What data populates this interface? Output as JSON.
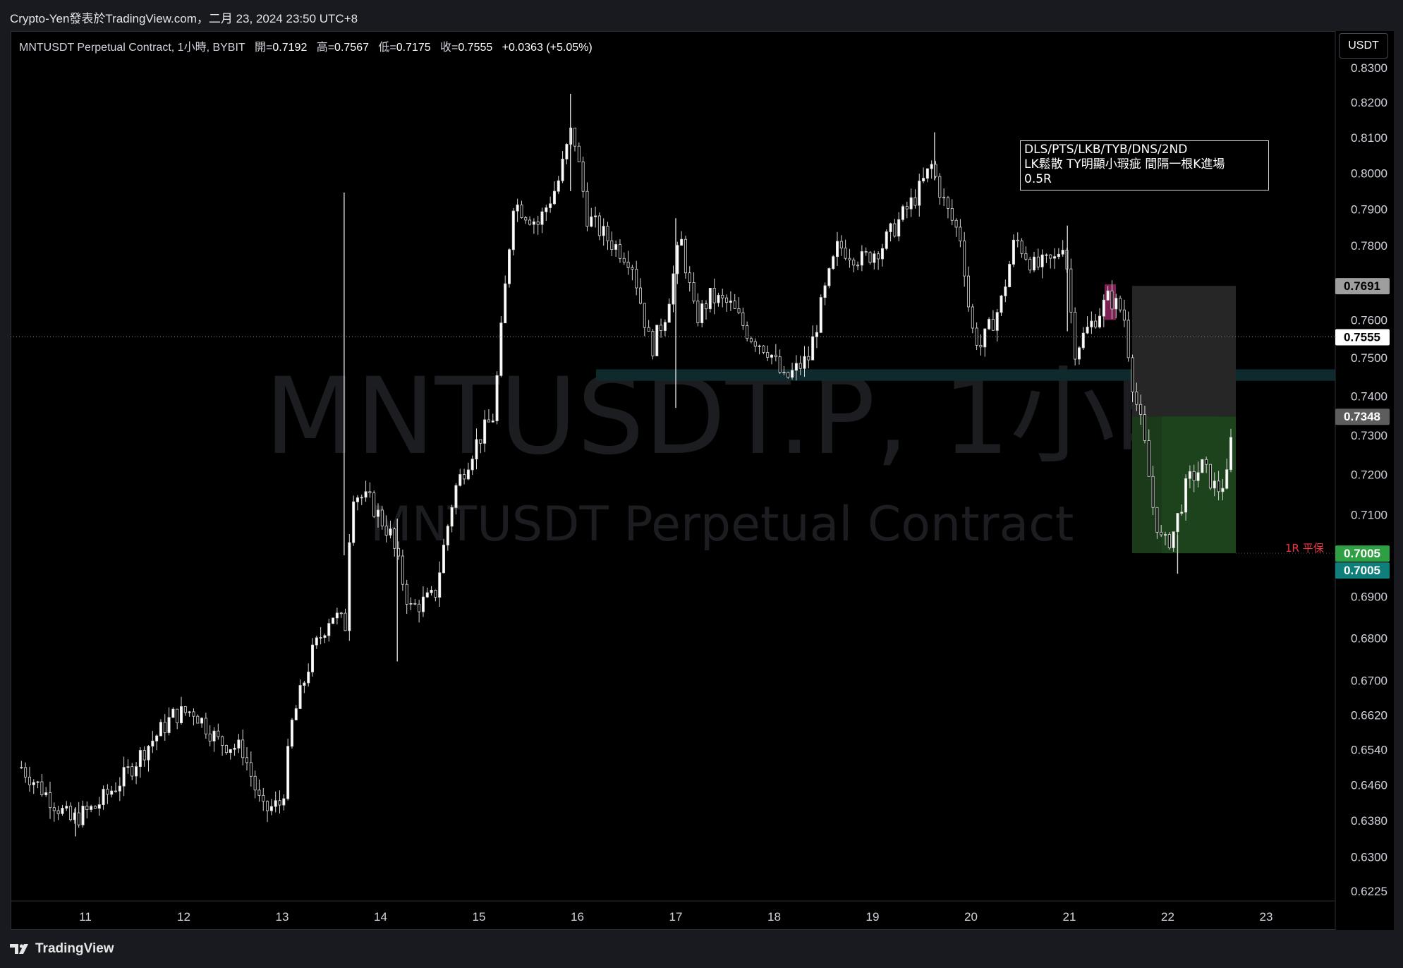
{
  "header": {
    "published_by": "Crypto-Yen發表於TradingView.com，二月 23, 2024 23:50 UTC+8"
  },
  "legend": {
    "symbol": "MNTUSDT Perpetual Contract, 1小時, BYBIT",
    "open_label": "開=",
    "open": "0.7192",
    "high_label": "高=",
    "high": "0.7567",
    "low_label": "低=",
    "low": "0.7175",
    "close_label": "收=",
    "close": "0.7555",
    "change": "+0.0363 (+5.05%)"
  },
  "currency_button": "USDT",
  "watermark": {
    "line1": "MNTUSDT.P, 1小時",
    "line2": "MNTUSDT Perpetual Contract"
  },
  "note": {
    "line1": "DLS/PTS/LKB/TYB/DNS/2ND",
    "line2": "LK鬆散 TY明顯小瑕疵 間隔一根K進場",
    "line3": "0.5R"
  },
  "rr_label": "1R 平保",
  "footer": {
    "brand": "TradingView"
  },
  "colors": {
    "background": "#000000",
    "candle_up": "#ffffff",
    "candle_down": "#000000",
    "stop_zone": "#262626",
    "target_zone": "#1a3a1a",
    "entry_zone_accent": "#7d1f53",
    "level_band": "#0e2a2c",
    "label_green": "#2ea043",
    "label_teal": "#0e7f7a",
    "label_red": "#f23645"
  },
  "chart_data": {
    "type": "candlestick",
    "y_scale": "log",
    "ylim": [
      0.6205,
      0.837
    ],
    "y_ticks": [
      "0.8300",
      "0.8200",
      "0.8100",
      "0.8000",
      "0.7900",
      "0.7800",
      "0.7600",
      "0.7500",
      "0.7400",
      "0.7300",
      "0.7200",
      "0.7100",
      "0.6900",
      "0.6800",
      "0.6700",
      "0.6620",
      "0.6540",
      "0.6460",
      "0.6380",
      "0.6300",
      "0.6225"
    ],
    "x_ticks": [
      "11",
      "12",
      "13",
      "14",
      "15",
      "16",
      "17",
      "18",
      "19",
      "20",
      "21",
      "22",
      "23"
    ],
    "price_labels": [
      {
        "value": "0.7691",
        "style": "grey"
      },
      {
        "value": "0.7555",
        "style": "white"
      },
      {
        "value": "0.7348",
        "style": "darkgrey"
      },
      {
        "value": "0.7005",
        "style": "green"
      },
      {
        "value": "0.7005",
        "style": "teal"
      }
    ],
    "current_price": 0.7555,
    "position": {
      "side": "short",
      "stop": 0.7691,
      "entry": 0.7348,
      "target": 0.7005
    },
    "horizontal_band": [
      0.744,
      0.747
    ],
    "waypoints": [
      {
        "day": 10.35,
        "price": 0.65
      },
      {
        "day": 10.6,
        "price": 0.644
      },
      {
        "day": 10.85,
        "price": 0.638
      },
      {
        "day": 11.1,
        "price": 0.641
      },
      {
        "day": 11.4,
        "price": 0.648
      },
      {
        "day": 11.6,
        "price": 0.654
      },
      {
        "day": 11.9,
        "price": 0.662
      },
      {
        "day": 12.1,
        "price": 0.663
      },
      {
        "day": 12.35,
        "price": 0.656
      },
      {
        "day": 12.6,
        "price": 0.654
      },
      {
        "day": 12.8,
        "price": 0.64
      },
      {
        "day": 13.0,
        "price": 0.642
      },
      {
        "day": 13.1,
        "price": 0.66
      },
      {
        "day": 13.3,
        "price": 0.676
      },
      {
        "day": 13.5,
        "price": 0.686
      },
      {
        "day": 13.65,
        "price": 0.683
      },
      {
        "day": 13.7,
        "price": 0.716
      },
      {
        "day": 13.9,
        "price": 0.713
      },
      {
        "day": 14.1,
        "price": 0.705
      },
      {
        "day": 14.3,
        "price": 0.687
      },
      {
        "day": 14.55,
        "price": 0.69
      },
      {
        "day": 14.75,
        "price": 0.716
      },
      {
        "day": 14.95,
        "price": 0.727
      },
      {
        "day": 15.15,
        "price": 0.735
      },
      {
        "day": 15.25,
        "price": 0.764
      },
      {
        "day": 15.35,
        "price": 0.792
      },
      {
        "day": 15.6,
        "price": 0.786
      },
      {
        "day": 15.8,
        "price": 0.797
      },
      {
        "day": 15.95,
        "price": 0.813
      },
      {
        "day": 16.1,
        "price": 0.788
      },
      {
        "day": 16.3,
        "price": 0.782
      },
      {
        "day": 16.55,
        "price": 0.776
      },
      {
        "day": 16.75,
        "price": 0.752
      },
      {
        "day": 16.9,
        "price": 0.762
      },
      {
        "day": 17.05,
        "price": 0.782
      },
      {
        "day": 17.2,
        "price": 0.76
      },
      {
        "day": 17.35,
        "price": 0.766
      },
      {
        "day": 17.55,
        "price": 0.764
      },
      {
        "day": 17.75,
        "price": 0.756
      },
      {
        "day": 17.95,
        "price": 0.752
      },
      {
        "day": 18.1,
        "price": 0.744
      },
      {
        "day": 18.35,
        "price": 0.75
      },
      {
        "day": 18.5,
        "price": 0.766
      },
      {
        "day": 18.65,
        "price": 0.78
      },
      {
        "day": 18.9,
        "price": 0.776
      },
      {
        "day": 19.1,
        "price": 0.78
      },
      {
        "day": 19.3,
        "price": 0.788
      },
      {
        "day": 19.45,
        "price": 0.794
      },
      {
        "day": 19.6,
        "price": 0.802
      },
      {
        "day": 19.75,
        "price": 0.79
      },
      {
        "day": 19.9,
        "price": 0.782
      },
      {
        "day": 20.0,
        "price": 0.758
      },
      {
        "day": 20.1,
        "price": 0.753
      },
      {
        "day": 20.3,
        "price": 0.764
      },
      {
        "day": 20.45,
        "price": 0.782
      },
      {
        "day": 20.65,
        "price": 0.774
      },
      {
        "day": 20.85,
        "price": 0.776
      },
      {
        "day": 20.95,
        "price": 0.782
      },
      {
        "day": 21.05,
        "price": 0.752
      },
      {
        "day": 21.2,
        "price": 0.758
      },
      {
        "day": 21.4,
        "price": 0.766
      },
      {
        "day": 21.55,
        "price": 0.762
      },
      {
        "day": 21.65,
        "price": 0.742
      },
      {
        "day": 21.75,
        "price": 0.73
      },
      {
        "day": 21.85,
        "price": 0.712
      },
      {
        "day": 21.95,
        "price": 0.702
      },
      {
        "day": 22.05,
        "price": 0.705
      },
      {
        "day": 22.2,
        "price": 0.718
      },
      {
        "day": 22.35,
        "price": 0.722
      },
      {
        "day": 22.5,
        "price": 0.716
      },
      {
        "day": 22.63,
        "price": 0.72
      },
      {
        "day": 22.68,
        "price": 0.755
      }
    ],
    "spikes": [
      {
        "day": 13.63,
        "high": 0.7946,
        "low": 0.7
      },
      {
        "day": 15.93,
        "high": 0.8225,
        "low": 0.795
      },
      {
        "day": 14.17,
        "high": 0.709,
        "low": 0.6745
      },
      {
        "day": 17.0,
        "high": 0.7875,
        "low": 0.737
      },
      {
        "day": 19.63,
        "high": 0.8115,
        "low": 0.798
      },
      {
        "day": 20.98,
        "high": 0.7855,
        "low": 0.757
      },
      {
        "day": 10.9,
        "high": 0.641,
        "low": 0.6345
      },
      {
        "day": 22.1,
        "high": 0.705,
        "low": 0.6955
      }
    ]
  }
}
